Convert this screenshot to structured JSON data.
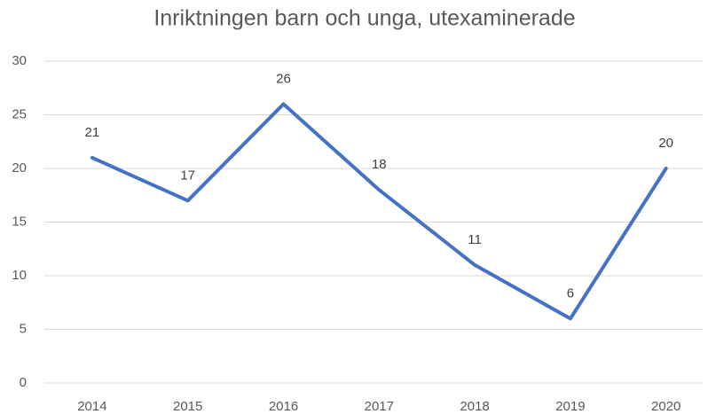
{
  "chart_data": {
    "type": "line",
    "title": "Inriktningen barn och unga, utexaminerade",
    "categories": [
      "2014",
      "2015",
      "2016",
      "2017",
      "2018",
      "2019",
      "2020"
    ],
    "values": [
      21,
      17,
      26,
      18,
      11,
      6,
      20
    ],
    "color": "#4472c4",
    "ylim": [
      0,
      30
    ],
    "yticks": [
      0,
      5,
      10,
      15,
      20,
      25,
      30
    ],
    "grid": true
  }
}
